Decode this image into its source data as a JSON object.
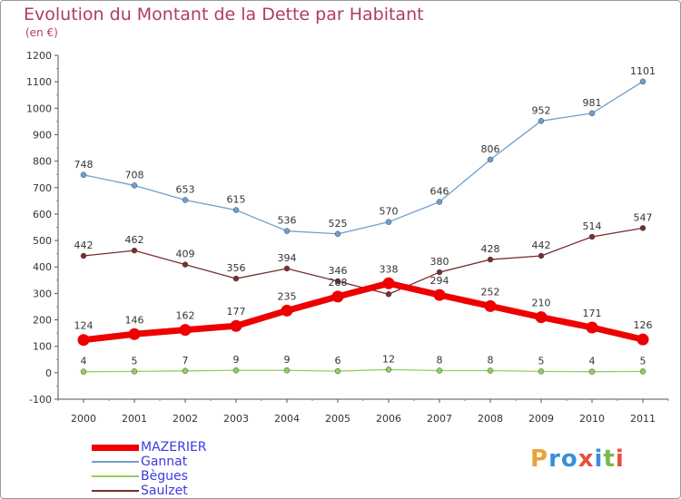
{
  "title": "Evolution du Montant de la Dette par Habitant",
  "subtitle": "(en €)",
  "logo": {
    "text": "Proxiti",
    "colors": [
      "#e8a33a",
      "#3a8fd8",
      "#3a8fd8",
      "#e8503a",
      "#3a8fd8",
      "#7ab84a",
      "#e8503a"
    ]
  },
  "chart_data": {
    "type": "line",
    "x": [
      "2000",
      "2001",
      "2002",
      "2003",
      "2004",
      "2005",
      "2006",
      "2007",
      "2008",
      "2009",
      "2010",
      "2011"
    ],
    "ylim": [
      -100,
      1200
    ],
    "yticks": [
      -100,
      0,
      100,
      200,
      300,
      400,
      500,
      600,
      700,
      800,
      900,
      1000,
      1100,
      1200
    ],
    "xlabel": "",
    "ylabel": "",
    "grid": false,
    "legend_position": "bottom-left",
    "series": [
      {
        "name": "MAZERIER",
        "color": "#ee0000",
        "values": [
          124,
          146,
          162,
          177,
          235,
          288,
          338,
          294,
          252,
          210,
          171,
          126
        ],
        "labels": [
          "124",
          "146",
          "162",
          "177",
          "235",
          "288",
          "338",
          "294",
          "252",
          "210",
          "171",
          "126"
        ]
      },
      {
        "name": "Gannat",
        "color": "#6f9fd0",
        "values": [
          748,
          708,
          653,
          615,
          536,
          525,
          570,
          646,
          806,
          952,
          981,
          1101
        ],
        "labels": [
          "748",
          "708",
          "653",
          "615",
          "536",
          "525",
          "570",
          "646",
          "806",
          "952",
          "981",
          "1101"
        ]
      },
      {
        "name": "Bègues",
        "color": "#8fd05f",
        "values": [
          4,
          5,
          7,
          9,
          9,
          6,
          12,
          8,
          8,
          5,
          4,
          5
        ],
        "labels": [
          "4",
          "5",
          "7",
          "9",
          "9",
          "6",
          "12",
          "8",
          "8",
          "5",
          "4",
          "5"
        ]
      },
      {
        "name": "Saulzet",
        "color": "#7a2e2e",
        "values": [
          442,
          462,
          409,
          356,
          394,
          346,
          297,
          380,
          428,
          442,
          514,
          547
        ],
        "labels": [
          "442",
          "462",
          "409",
          "356",
          "394",
          "346",
          "",
          "380",
          "428",
          "442",
          "514",
          "547"
        ]
      }
    ]
  }
}
